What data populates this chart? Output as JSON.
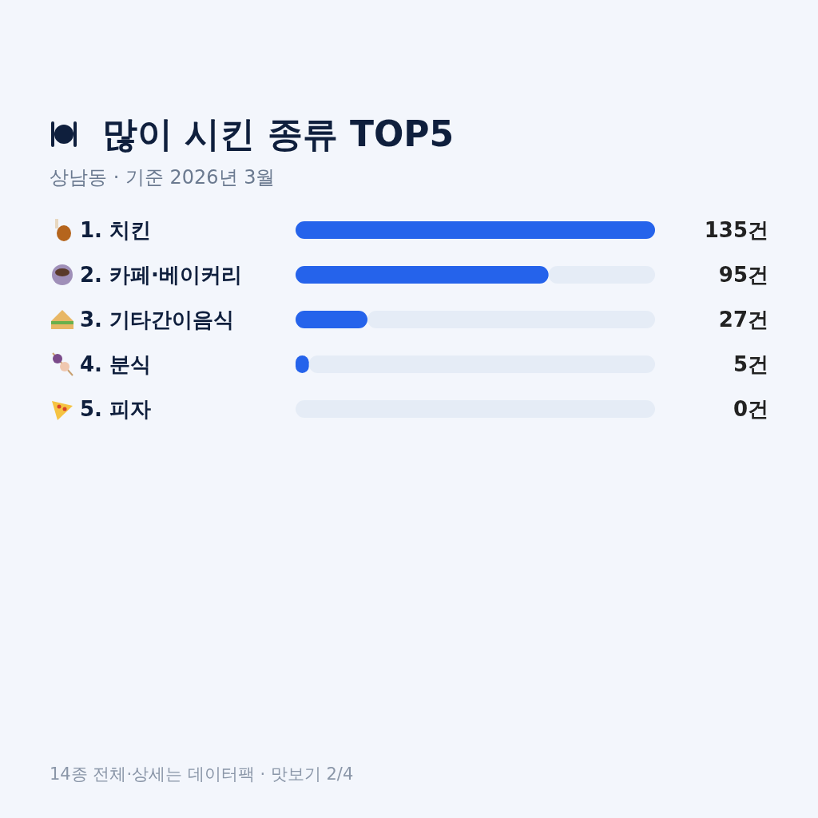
{
  "chart_data": {
    "type": "bar",
    "orientation": "horizontal",
    "title": "많이 시킨 종류 TOP5",
    "subtitle": "상남동 · 기준 2026년 3월",
    "categories": [
      "1. 치킨",
      "2. 카페·베이커리",
      "3. 기타간이음식",
      "4. 분식",
      "5. 피자"
    ],
    "values": [
      135,
      95,
      27,
      5,
      0
    ],
    "value_labels": [
      "135건",
      "95건",
      "27건",
      "5건",
      "0건"
    ],
    "color": "#2563eb",
    "annotations": [
      "14종 전체·상세는 데이터팩 · 맛보기 2/4"
    ]
  }
}
